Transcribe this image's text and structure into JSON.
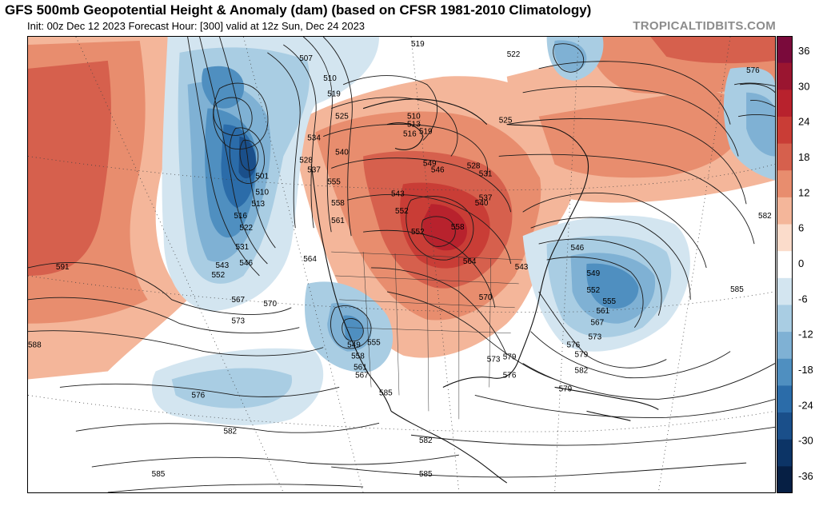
{
  "header": {
    "title": "GFS 500mb Geopotential Height & Anomaly (dam) (based on CFSR 1981-2010 Climatology)",
    "subtitle": "Init: 00z Dec 12 2023   Forecast Hour: [300]   valid at 12z Sun, Dec 24 2023",
    "credit": "TROPICALTIDBITS.COM"
  },
  "colorbar": {
    "ticks": [
      "36",
      "30",
      "24",
      "18",
      "12",
      "6",
      "0",
      "-6",
      "-12",
      "-18",
      "-24",
      "-30",
      "-36"
    ],
    "colors": [
      "#7a0a3b",
      "#9a1530",
      "#b8222d",
      "#c93d36",
      "#d6604d",
      "#e88d6e",
      "#f4b69a",
      "#fbdccb",
      "#ffffff",
      "#d3e5f0",
      "#a9cde3",
      "#7fb1d4",
      "#4f8fc0",
      "#2b6ca9",
      "#1a4f8a",
      "#0c3466",
      "#061f44"
    ]
  },
  "contour_labels": [
    {
      "text": "507"
    },
    {
      "text": "510"
    },
    {
      "text": "519"
    },
    {
      "text": "522"
    },
    {
      "text": "576"
    },
    {
      "text": "519"
    },
    {
      "text": "525"
    },
    {
      "text": "510"
    },
    {
      "text": "513"
    },
    {
      "text": "516"
    },
    {
      "text": "519"
    },
    {
      "text": "525"
    },
    {
      "text": "534"
    },
    {
      "text": "540"
    },
    {
      "text": "528"
    },
    {
      "text": "537"
    },
    {
      "text": "501"
    },
    {
      "text": "510"
    },
    {
      "text": "513"
    },
    {
      "text": "516"
    },
    {
      "text": "522"
    },
    {
      "text": "531"
    },
    {
      "text": "543"
    },
    {
      "text": "546"
    },
    {
      "text": "552"
    },
    {
      "text": "555"
    },
    {
      "text": "558"
    },
    {
      "text": "561"
    },
    {
      "text": "543"
    },
    {
      "text": "552"
    },
    {
      "text": "549"
    },
    {
      "text": "546"
    },
    {
      "text": "528"
    },
    {
      "text": "531"
    },
    {
      "text": "537"
    },
    {
      "text": "540"
    },
    {
      "text": "558"
    },
    {
      "text": "564"
    },
    {
      "text": "552"
    },
    {
      "text": "582"
    },
    {
      "text": "591"
    },
    {
      "text": "564"
    },
    {
      "text": "567"
    },
    {
      "text": "570"
    },
    {
      "text": "573"
    },
    {
      "text": "549"
    },
    {
      "text": "555"
    },
    {
      "text": "558"
    },
    {
      "text": "561"
    },
    {
      "text": "567"
    },
    {
      "text": "543"
    },
    {
      "text": "546"
    },
    {
      "text": "549"
    },
    {
      "text": "552"
    },
    {
      "text": "555"
    },
    {
      "text": "561"
    },
    {
      "text": "567"
    },
    {
      "text": "573"
    },
    {
      "text": "576"
    },
    {
      "text": "579"
    },
    {
      "text": "582"
    },
    {
      "text": "570"
    },
    {
      "text": "585"
    },
    {
      "text": "588"
    },
    {
      "text": "576"
    },
    {
      "text": "579"
    },
    {
      "text": "582"
    },
    {
      "text": "585"
    },
    {
      "text": "573"
    },
    {
      "text": "576"
    },
    {
      "text": "579"
    },
    {
      "text": "582"
    },
    {
      "text": "585"
    },
    {
      "text": "585"
    }
  ]
}
